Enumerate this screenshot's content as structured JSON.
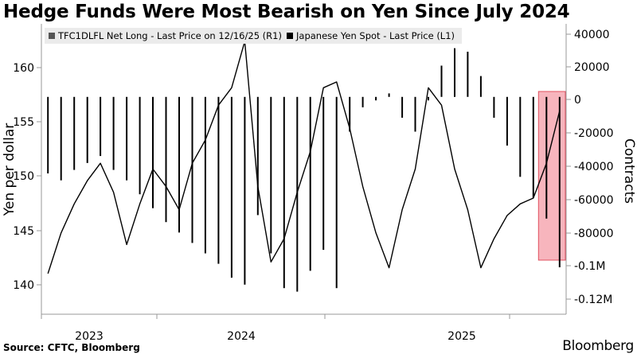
{
  "title": "Hedge Funds Were Most Bearish on Yen Since July 2024",
  "source": "Source: CFTC, Bloomberg",
  "brand": "Bloomberg",
  "colors": {
    "line": "#000000",
    "bars": "#000000",
    "highlight_fill": "#f7b5bd",
    "highlight_stroke": "#e0505f",
    "legend_bg": "#ebebeb",
    "legend_swatch_bars": "#555555",
    "legend_swatch_line": "#000000"
  },
  "chart_data": {
    "type": "bar+line",
    "legend": [
      {
        "key": "net_long",
        "label": "TFC1DLFL Net Long - Last Price on 12/16/25 (R1)"
      },
      {
        "key": "spot",
        "label": "Japanese Yen Spot - Last Price (L1)"
      }
    ],
    "x_tick_labels": [
      "2023",
      "2024",
      "2025"
    ],
    "x_range": [
      "2022-09",
      "2025-12"
    ],
    "left_axis": {
      "label": "Yen per dollar",
      "ylim": [
        138,
        163
      ],
      "ticks": [
        "140",
        "145",
        "150",
        "155",
        "160"
      ]
    },
    "right_axis": {
      "label": "Contracts",
      "ylim": [
        -125000,
        42000
      ],
      "ticks": [
        "40000",
        "20000",
        "0",
        "-20000",
        "-40000",
        "-60000",
        "-80000",
        "-0.1M",
        "-0.12M"
      ]
    },
    "highlight": {
      "from": "2025-11",
      "to": "2025-12",
      "note": "shaded region highlighting most recent weeks"
    },
    "series": [
      {
        "name": "TFC1DLFL Net Long",
        "kind": "bar",
        "axis": "right",
        "x": [
          "2022-09",
          "2022-10",
          "2022-11",
          "2022-12",
          "2023-01",
          "2023-02",
          "2023-03",
          "2023-04",
          "2023-05",
          "2023-06",
          "2023-07",
          "2023-08",
          "2023-09",
          "2023-10",
          "2023-11",
          "2023-12",
          "2024-01",
          "2024-02",
          "2024-03",
          "2024-04",
          "2024-05",
          "2024-06",
          "2024-07",
          "2024-08",
          "2024-09",
          "2024-10",
          "2024-11",
          "2024-12",
          "2025-01",
          "2025-02",
          "2025-03",
          "2025-04",
          "2025-05",
          "2025-06",
          "2025-07",
          "2025-08",
          "2025-09",
          "2025-10",
          "2025-11",
          "2025-12"
        ],
        "values": [
          -44000,
          -48000,
          -42000,
          -38000,
          -34000,
          -42000,
          -48000,
          -56000,
          -64000,
          -72000,
          -78000,
          -84000,
          -90000,
          -96000,
          -104000,
          -108000,
          -68000,
          -90000,
          -110000,
          -112000,
          -100000,
          -88000,
          -110000,
          -20000,
          -6000,
          -2000,
          2000,
          -12000,
          -20000,
          -2000,
          18000,
          28000,
          26000,
          12000,
          -12000,
          -28000,
          -46000,
          -58000,
          -70000,
          -98000
        ]
      },
      {
        "name": "Japanese Yen Spot",
        "kind": "line",
        "axis": "left",
        "x": [
          "2022-09",
          "2022-10",
          "2022-11",
          "2022-12",
          "2023-01",
          "2023-02",
          "2023-03",
          "2023-04",
          "2023-05",
          "2023-06",
          "2023-07",
          "2023-08",
          "2023-09",
          "2023-10",
          "2023-11",
          "2023-12",
          "2024-01",
          "2024-02",
          "2024-03",
          "2024-04",
          "2024-05",
          "2024-06",
          "2024-07",
          "2024-08",
          "2024-09",
          "2024-10",
          "2024-11",
          "2024-12",
          "2025-01",
          "2025-02",
          "2025-03",
          "2025-04",
          "2025-05",
          "2025-06",
          "2025-07",
          "2025-08",
          "2025-09",
          "2025-10",
          "2025-11",
          "2025-12"
        ],
        "values": [
          141.5,
          145.0,
          147.5,
          149.5,
          151.0,
          148.5,
          144.0,
          147.5,
          150.5,
          149.0,
          147.0,
          151.0,
          153.0,
          156.0,
          157.5,
          161.5,
          149.0,
          142.5,
          144.5,
          148.5,
          152.0,
          157.5,
          158.0,
          154.0,
          149.0,
          145.0,
          142.0,
          147.0,
          150.5,
          157.5,
          156.0,
          150.5,
          147.0,
          142.0,
          144.5,
          146.5,
          147.5,
          148.0,
          151.0,
          155.5
        ]
      }
    ]
  }
}
